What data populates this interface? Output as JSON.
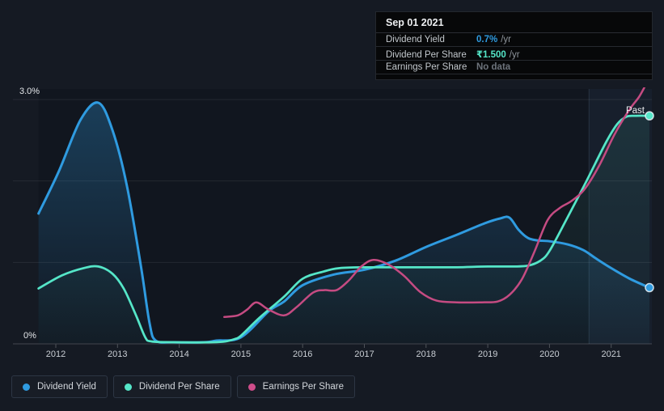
{
  "panel": {
    "background": "#151a23"
  },
  "tooltip": {
    "date": "Sep 01 2021",
    "rows": [
      {
        "label": "Dividend Yield",
        "value": "0.7%",
        "suffix": "/yr",
        "value_color": "#2f9be0"
      },
      {
        "label": "Dividend Per Share",
        "value": "₹1.500",
        "suffix": "/yr",
        "value_color": "#55e6c8"
      },
      {
        "label": "Earnings Per Share",
        "value": "No data",
        "suffix": "",
        "value_color": "#6d737b"
      }
    ]
  },
  "legend": {
    "items": [
      {
        "label": "Dividend Yield",
        "color": "#2f9be0"
      },
      {
        "label": "Dividend Per Share",
        "color": "#55e6c8"
      },
      {
        "label": "Earnings Per Share",
        "color": "#cf4d8a"
      }
    ]
  },
  "chart_data": {
    "type": "line",
    "title": "Dividend history (past)",
    "x_axis": {
      "ticks": [
        "2012",
        "2013",
        "2014",
        "2015",
        "2016",
        "2017",
        "2018",
        "2019",
        "2020",
        "2021"
      ],
      "range": [
        2011.7,
        2021.68
      ]
    },
    "y_axis": {
      "unit": "%",
      "range": [
        0,
        3
      ],
      "gridline_values": [
        0,
        1,
        2,
        3
      ],
      "labels": [
        {
          "value": 3,
          "label": "3.0%"
        },
        {
          "value": 0,
          "label": "0%"
        }
      ]
    },
    "annotations": {
      "past_label": "Past",
      "past_band_start": 2020.64
    },
    "legend_position": "bottom-left",
    "series": [
      {
        "name": "Dividend Yield",
        "color": "#2f9be0",
        "end_dot": true,
        "area_opacity": 0.3,
        "width": 3,
        "points": [
          [
            2011.72,
            1.6
          ],
          [
            2012.05,
            2.12
          ],
          [
            2012.4,
            2.75
          ],
          [
            2012.69,
            2.96
          ],
          [
            2012.92,
            2.62
          ],
          [
            2013.15,
            1.95
          ],
          [
            2013.38,
            0.95
          ],
          [
            2013.52,
            0.25
          ],
          [
            2013.62,
            0.04
          ],
          [
            2013.9,
            0.02
          ],
          [
            2014.41,
            0.02
          ],
          [
            2014.6,
            0.04
          ],
          [
            2015.0,
            0.08
          ],
          [
            2015.45,
            0.4
          ],
          [
            2015.7,
            0.52
          ],
          [
            2016.0,
            0.72
          ],
          [
            2016.5,
            0.85
          ],
          [
            2017.0,
            0.91
          ],
          [
            2017.5,
            1.02
          ],
          [
            2018.0,
            1.19
          ],
          [
            2018.5,
            1.34
          ],
          [
            2018.95,
            1.48
          ],
          [
            2019.2,
            1.54
          ],
          [
            2019.35,
            1.55
          ],
          [
            2019.5,
            1.4
          ],
          [
            2019.65,
            1.3
          ],
          [
            2019.8,
            1.27
          ],
          [
            2020.0,
            1.26
          ],
          [
            2020.3,
            1.22
          ],
          [
            2020.55,
            1.15
          ],
          [
            2020.75,
            1.05
          ],
          [
            2021.0,
            0.93
          ],
          [
            2021.3,
            0.8
          ],
          [
            2021.62,
            0.69
          ]
        ]
      },
      {
        "name": "Dividend Per Share",
        "color": "#55e6c8",
        "end_dot": true,
        "area_opacity": 0.1,
        "width": 2.75,
        "points": [
          [
            2011.72,
            0.68
          ],
          [
            2012.1,
            0.84
          ],
          [
            2012.45,
            0.93
          ],
          [
            2012.69,
            0.95
          ],
          [
            2012.92,
            0.86
          ],
          [
            2013.1,
            0.68
          ],
          [
            2013.3,
            0.35
          ],
          [
            2013.45,
            0.08
          ],
          [
            2013.55,
            0.03
          ],
          [
            2013.9,
            0.02
          ],
          [
            2014.54,
            0.02
          ],
          [
            2014.75,
            0.03
          ],
          [
            2014.9,
            0.06
          ],
          [
            2015.0,
            0.1
          ],
          [
            2015.3,
            0.32
          ],
          [
            2015.7,
            0.58
          ],
          [
            2016.0,
            0.8
          ],
          [
            2016.35,
            0.89
          ],
          [
            2016.6,
            0.93
          ],
          [
            2017.0,
            0.94
          ],
          [
            2017.5,
            0.94
          ],
          [
            2018.0,
            0.94
          ],
          [
            2018.5,
            0.94
          ],
          [
            2019.0,
            0.95
          ],
          [
            2019.4,
            0.95
          ],
          [
            2019.65,
            0.96
          ],
          [
            2019.85,
            1.02
          ],
          [
            2020.0,
            1.14
          ],
          [
            2020.27,
            1.52
          ],
          [
            2020.6,
            2.0
          ],
          [
            2020.92,
            2.48
          ],
          [
            2021.1,
            2.7
          ],
          [
            2021.25,
            2.79
          ],
          [
            2021.4,
            2.8
          ],
          [
            2021.62,
            2.8
          ]
        ]
      },
      {
        "name": "Earnings Per Share",
        "color": "#c54b82",
        "end_dot": false,
        "area_opacity": 0,
        "width": 2.5,
        "points": [
          [
            2014.73,
            0.33
          ],
          [
            2014.95,
            0.35
          ],
          [
            2015.1,
            0.42
          ],
          [
            2015.25,
            0.51
          ],
          [
            2015.45,
            0.42
          ],
          [
            2015.7,
            0.35
          ],
          [
            2015.9,
            0.45
          ],
          [
            2016.17,
            0.63
          ],
          [
            2016.35,
            0.66
          ],
          [
            2016.55,
            0.66
          ],
          [
            2016.75,
            0.78
          ],
          [
            2016.95,
            0.95
          ],
          [
            2017.15,
            1.03
          ],
          [
            2017.4,
            0.97
          ],
          [
            2017.65,
            0.83
          ],
          [
            2017.9,
            0.64
          ],
          [
            2018.17,
            0.53
          ],
          [
            2018.5,
            0.51
          ],
          [
            2018.9,
            0.51
          ],
          [
            2019.16,
            0.52
          ],
          [
            2019.35,
            0.6
          ],
          [
            2019.55,
            0.79
          ],
          [
            2019.75,
            1.12
          ],
          [
            2019.97,
            1.52
          ],
          [
            2020.17,
            1.67
          ],
          [
            2020.35,
            1.75
          ],
          [
            2020.56,
            1.89
          ],
          [
            2020.8,
            2.18
          ],
          [
            2021.06,
            2.58
          ],
          [
            2021.3,
            2.88
          ],
          [
            2021.45,
            3.03
          ],
          [
            2021.56,
            3.18
          ]
        ]
      }
    ]
  }
}
